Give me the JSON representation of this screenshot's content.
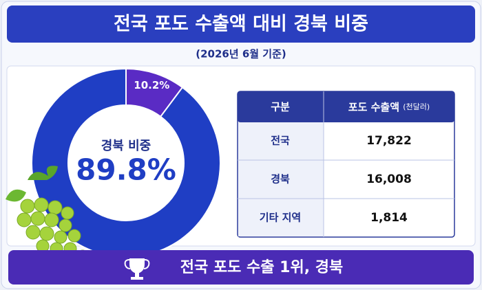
{
  "header": {
    "title": "전국 포도 수출액 대비 경북 비중",
    "subtitle": "(2026년 6월 기준)"
  },
  "chart_data": {
    "type": "pie",
    "donut": true,
    "center_label": "경북 비중",
    "values": [
      89.8,
      10.2
    ],
    "value_labels": [
      "89.8%",
      "10.2%"
    ],
    "colors": [
      "#1f3ec4",
      "#5a2bc4"
    ]
  },
  "table": {
    "header": [
      "구분",
      "포도 수출액"
    ],
    "unit": "(천달러)",
    "rows": [
      [
        "전국",
        "17,822"
      ],
      [
        "경북",
        "16,008"
      ],
      [
        "기타 지역",
        "1,814"
      ]
    ]
  },
  "footer": "전국 포도 수출 1위, 경북"
}
